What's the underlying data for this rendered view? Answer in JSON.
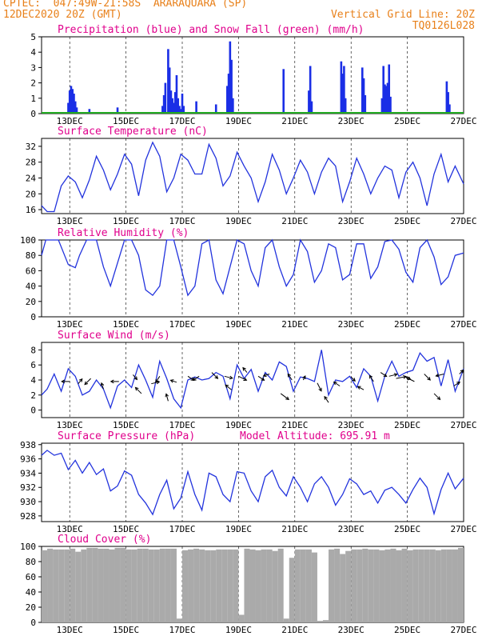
{
  "header": {
    "line1_left": "CPTEC:  047:49W-21:58S  ARARAQUARA (SP)",
    "line2_left": "12DEC2020 20Z (GMT)",
    "line2_right": "Vertical Grid Line: 20Z",
    "line3_right": "TQ0126L028"
  },
  "colors": {
    "line": "#2233dd",
    "snow": "#22aa22",
    "title": "#e0008c",
    "header": "#e8801a",
    "cloud": "#aaaaaa"
  },
  "chart_data": [
    {
      "type": "bar",
      "title": "Precipitation (blue) and Snow Fall (green) (mm/h)",
      "x_tick_labels": [
        "13DEC",
        "15DEC",
        "17DEC",
        "19DEC",
        "21DEC",
        "23DEC",
        "25DEC",
        "27DEC"
      ],
      "ylim": [
        0,
        5
      ],
      "y_ticks": [
        0,
        1,
        2,
        3,
        4,
        5
      ],
      "grid": "vertical dashed",
      "series": [
        {
          "name": "Precipitation",
          "color": "blue",
          "x": [
            0.95,
            1.0,
            1.05,
            1.1,
            1.15,
            1.2,
            1.25,
            1.7,
            2.7,
            4.3,
            4.35,
            4.4,
            4.5,
            4.55,
            4.6,
            4.65,
            4.7,
            4.75,
            4.8,
            4.85,
            4.9,
            4.95,
            5.0,
            5.05,
            5.5,
            6.2,
            6.6,
            6.65,
            6.7,
            6.75,
            6.8,
            8.6,
            9.5,
            9.55,
            9.6,
            10.65,
            10.7,
            10.75,
            10.8,
            11.4,
            11.45,
            11.5,
            12.1,
            12.15,
            12.2,
            12.25,
            12.3,
            12.35,
            12.4,
            14.4,
            14.45,
            14.5
          ],
          "values": [
            0.7,
            1.5,
            1.8,
            1.6,
            1.3,
            0.8,
            0.4,
            0.3,
            0.4,
            0.5,
            1.2,
            2.0,
            4.2,
            3.0,
            1.5,
            1.0,
            0.7,
            1.4,
            2.5,
            1.0,
            0.5,
            0.3,
            1.3,
            0.5,
            0.8,
            0.6,
            1.8,
            2.6,
            4.7,
            3.5,
            1.0,
            2.9,
            1.5,
            3.1,
            0.8,
            3.4,
            2.6,
            3.1,
            1.0,
            3.0,
            2.3,
            1.2,
            1.0,
            3.1,
            1.9,
            1.8,
            2.0,
            3.2,
            1.1,
            2.1,
            1.4,
            0.6
          ]
        },
        {
          "name": "Snow Fall",
          "color": "green",
          "x": [
            0,
            15
          ],
          "values": [
            0,
            0
          ]
        }
      ]
    },
    {
      "type": "line",
      "title": "Surface Temperature (nC)",
      "x_tick_labels": [
        "13DEC",
        "15DEC",
        "17DEC",
        "19DEC",
        "21DEC",
        "23DEC",
        "25DEC",
        "27DEC"
      ],
      "ylim": [
        15,
        34
      ],
      "y_ticks": [
        16,
        20,
        24,
        28,
        32
      ],
      "grid": "vertical dashed",
      "series": [
        {
          "color": "blue",
          "x": [
            0,
            0.2,
            0.45,
            0.7,
            0.95,
            1.2,
            1.45,
            1.7,
            1.95,
            2.2,
            2.45,
            2.7,
            2.95,
            3.2,
            3.45,
            3.7,
            3.95,
            4.2,
            4.45,
            4.7,
            4.95,
            5.2,
            5.45,
            5.7,
            5.95,
            6.2,
            6.45,
            6.7,
            6.95,
            7.2,
            7.45,
            7.7,
            7.95,
            8.2,
            8.45,
            8.7,
            8.95,
            9.2,
            9.45,
            9.7,
            9.95,
            10.2,
            10.45,
            10.7,
            10.95,
            11.2,
            11.45,
            11.7,
            11.95,
            12.2,
            12.45,
            12.7,
            12.95,
            13.2,
            13.45,
            13.7,
            13.95,
            14.2,
            14.45,
            14.7,
            15.0
          ],
          "values": [
            17,
            15.5,
            15.5,
            22,
            24.5,
            23,
            19,
            23.5,
            29.5,
            26,
            21,
            25,
            30,
            27.5,
            19.5,
            28.5,
            33,
            29.5,
            20.5,
            24,
            30,
            28.5,
            25,
            25,
            32.5,
            29,
            22,
            24.5,
            30.5,
            27,
            24,
            18,
            23,
            30,
            26,
            20,
            24,
            28.5,
            25.5,
            20,
            25.5,
            29,
            27,
            18,
            23,
            29,
            25,
            20,
            24,
            27,
            26,
            19,
            25.5,
            28,
            24,
            17,
            25,
            30,
            23,
            27,
            22.5
          ]
        }
      ]
    },
    {
      "type": "line",
      "title": "Relative Humidity (%)",
      "x_tick_labels": [
        "13DEC",
        "15DEC",
        "17DEC",
        "19DEC",
        "21DEC",
        "23DEC",
        "25DEC",
        "27DEC"
      ],
      "ylim": [
        0,
        100
      ],
      "y_ticks": [
        0,
        20,
        40,
        60,
        80,
        100
      ],
      "grid": "vertical dashed",
      "series": [
        {
          "color": "blue",
          "x": [
            0,
            0.15,
            0.3,
            0.6,
            0.95,
            1.2,
            1.35,
            1.6,
            1.95,
            2.2,
            2.45,
            2.7,
            2.95,
            3.2,
            3.45,
            3.7,
            3.95,
            4.2,
            4.45,
            4.7,
            4.95,
            5.2,
            5.45,
            5.7,
            5.95,
            6.2,
            6.45,
            6.7,
            6.95,
            7.2,
            7.45,
            7.7,
            7.95,
            8.2,
            8.45,
            8.7,
            8.95,
            9.2,
            9.45,
            9.7,
            9.95,
            10.2,
            10.45,
            10.7,
            10.95,
            11.2,
            11.45,
            11.7,
            11.95,
            12.2,
            12.45,
            12.7,
            12.95,
            13.2,
            13.45,
            13.7,
            13.95,
            14.2,
            14.45,
            14.7,
            15.0
          ],
          "values": [
            80,
            100,
            100,
            100,
            68,
            64,
            80,
            100,
            100,
            65,
            40,
            70,
            100,
            100,
            80,
            35,
            28,
            40,
            100,
            100,
            65,
            28,
            40,
            95,
            100,
            48,
            30,
            65,
            100,
            95,
            60,
            40,
            90,
            100,
            65,
            40,
            55,
            100,
            85,
            45,
            60,
            95,
            90,
            48,
            55,
            95,
            95,
            50,
            65,
            98,
            100,
            88,
            58,
            45,
            90,
            100,
            78,
            42,
            52,
            80,
            83
          ]
        }
      ]
    },
    {
      "type": "line",
      "title": "Surface Wind (m/s)",
      "x_tick_labels": [
        "13DEC",
        "15DEC",
        "17DEC",
        "19DEC",
        "21DEC",
        "23DEC",
        "25DEC",
        "27DEC"
      ],
      "ylim": [
        -1,
        9
      ],
      "y_ticks": [
        0,
        2,
        4,
        6,
        8
      ],
      "grid": "vertical dashed",
      "series": [
        {
          "color": "blue",
          "x": [
            0,
            0.2,
            0.45,
            0.7,
            0.95,
            1.2,
            1.45,
            1.7,
            1.95,
            2.2,
            2.45,
            2.7,
            2.95,
            3.2,
            3.45,
            3.7,
            3.95,
            4.2,
            4.45,
            4.7,
            4.95,
            5.2,
            5.45,
            5.7,
            5.95,
            6.2,
            6.45,
            6.7,
            6.95,
            7.2,
            7.45,
            7.7,
            7.95,
            8.2,
            8.45,
            8.7,
            8.95,
            9.2,
            9.45,
            9.7,
            9.95,
            10.2,
            10.45,
            10.7,
            10.95,
            11.2,
            11.45,
            11.7,
            11.95,
            12.2,
            12.45,
            12.7,
            12.95,
            13.2,
            13.45,
            13.7,
            13.95,
            14.2,
            14.45,
            14.7,
            15.0
          ],
          "values": [
            2,
            2.8,
            4.8,
            2.5,
            5.5,
            4.5,
            2,
            2.5,
            4,
            2.8,
            0.3,
            3.2,
            4,
            3,
            6,
            4,
            1.7,
            6.5,
            4.2,
            1.5,
            0.3,
            4,
            4.4,
            4,
            4.2,
            5,
            4.5,
            1.5,
            6,
            4.2,
            5.4,
            2.5,
            5,
            4,
            6.4,
            5.8,
            2.5,
            4.4,
            4.2,
            3.8,
            8,
            2,
            4,
            3.8,
            4.5,
            3,
            5.5,
            4.5,
            1.2,
            4.5,
            6.5,
            4.5,
            5,
            5.3,
            7.6,
            6.5,
            7,
            3.2,
            6.7,
            2.5,
            5.5
          ]
        },
        {
          "name": "wind arrows",
          "type": "vector",
          "x": [
            1.0,
            1.3,
            1.75,
            2.2,
            2.75,
            3.25,
            3.55,
            3.9,
            4.2,
            4.5,
            4.8,
            5.2,
            5.6,
            6.05,
            6.5,
            6.75,
            7.0,
            7.3,
            7.7,
            8.1,
            8.5,
            8.9,
            9.3,
            9.8,
            10.2,
            10.6,
            11.0,
            11.45,
            11.8,
            12.05,
            12.35,
            12.6,
            12.9,
            13.25,
            13.6,
            13.95,
            14.3,
            14.65,
            14.85
          ],
          "y": [
            3.8,
            3.5,
            4.2,
            2.8,
            3.8,
            4.7,
            2.2,
            3.5,
            4.5,
            1.2,
            3.7,
            4.5,
            4.5,
            5,
            4.5,
            2.7,
            4.5,
            5,
            4.5,
            4.8,
            2.2,
            4,
            4,
            3.6,
            1,
            3.2,
            4.4,
            2.7,
            3.8,
            5,
            4.5,
            4.2,
            4.5,
            3.8,
            4.8,
            2.2,
            4.8,
            3.2,
            4.8
          ],
          "u": [
            -2,
            1,
            -1.5,
            -0.5,
            -2,
            1,
            -1.5,
            2,
            -1,
            -0.5,
            -1.5,
            1.5,
            -1.5,
            1.5,
            2,
            -1.5,
            2,
            -1,
            1.5,
            -1.5,
            2,
            -1,
            0.5,
            1,
            -1,
            -1.5,
            1,
            -1.5,
            -1,
            1.5,
            2,
            2.5,
            1.5,
            -2,
            1.5,
            1.5,
            -2,
            1.5,
            1
          ],
          "v": [
            0,
            1.2,
            -1.5,
            1.5,
            0,
            -1.2,
            1.5,
            0.5,
            -1.5,
            1.8,
            0.5,
            -1,
            -1,
            -1.5,
            -0.5,
            1.2,
            -1,
            1.2,
            -1,
            -0.5,
            -1.5,
            1.5,
            1,
            -2,
            1.5,
            1,
            -1,
            0.8,
            1.5,
            -1,
            0.5,
            0.5,
            -0.8,
            1,
            -1.5,
            -1.5,
            -0.5,
            1,
            1
          ]
        }
      ]
    },
    {
      "type": "line",
      "title": "Surface Pressure (hPa)",
      "annotation": "Model Altitude: 695.91 m",
      "x_tick_labels": [
        "13DEC",
        "15DEC",
        "17DEC",
        "19DEC",
        "21DEC",
        "23DEC",
        "25DEC",
        "27DEC"
      ],
      "ylim": [
        927.2,
        938.2
      ],
      "y_ticks": [
        928,
        930,
        932,
        934,
        936,
        938
      ],
      "grid": "vertical dashed",
      "series": [
        {
          "color": "blue",
          "x": [
            0,
            0.2,
            0.45,
            0.7,
            0.95,
            1.2,
            1.45,
            1.7,
            1.95,
            2.2,
            2.45,
            2.7,
            2.95,
            3.2,
            3.45,
            3.7,
            3.95,
            4.2,
            4.45,
            4.7,
            4.95,
            5.2,
            5.45,
            5.7,
            5.95,
            6.2,
            6.45,
            6.7,
            6.95,
            7.2,
            7.45,
            7.7,
            7.95,
            8.2,
            8.45,
            8.7,
            8.95,
            9.2,
            9.45,
            9.7,
            9.95,
            10.2,
            10.45,
            10.7,
            10.95,
            11.2,
            11.45,
            11.7,
            11.95,
            12.2,
            12.45,
            12.7,
            12.95,
            13.2,
            13.45,
            13.7,
            13.95,
            14.2,
            14.45,
            14.7,
            15.0
          ],
          "values": [
            936.5,
            937.2,
            936.5,
            936.8,
            934.5,
            935.8,
            934,
            935.5,
            933.8,
            934.6,
            931.5,
            932.2,
            934.3,
            933.7,
            931,
            929.8,
            928.2,
            931,
            933,
            929,
            930.5,
            934.2,
            931,
            928.8,
            934,
            933.5,
            931,
            930,
            934.2,
            934,
            931.5,
            930,
            933.5,
            934.4,
            932,
            930.8,
            933.5,
            932,
            930,
            932.5,
            933.5,
            932,
            929.5,
            931,
            933.2,
            932.5,
            931,
            931.5,
            929.8,
            931.6,
            932,
            931,
            929.8,
            931.7,
            933.3,
            932,
            928.3,
            931.7,
            934,
            931.8,
            933.3
          ]
        }
      ]
    },
    {
      "type": "bar",
      "title": "Cloud Cover (%)",
      "x_tick_labels": [
        "13DEC",
        "15DEC",
        "17DEC",
        "19DEC",
        "21DEC",
        "23DEC",
        "25DEC",
        "27DEC"
      ],
      "ylim": [
        0,
        100
      ],
      "y_ticks": [
        0,
        20,
        40,
        60,
        80,
        100
      ],
      "grid": "vertical dashed",
      "series": [
        {
          "name": "Cloud cover",
          "color": "gray",
          "x": [
            0,
            0.2,
            0.4,
            0.6,
            0.8,
            1.0,
            1.2,
            1.4,
            1.6,
            1.8,
            2.0,
            2.2,
            2.4,
            2.6,
            2.8,
            3.0,
            3.2,
            3.4,
            3.6,
            3.8,
            4.0,
            4.2,
            4.4,
            4.6,
            4.8,
            5.0,
            5.2,
            5.4,
            5.6,
            5.8,
            6.0,
            6.2,
            6.4,
            6.6,
            6.8,
            7.0,
            7.2,
            7.4,
            7.6,
            7.8,
            8.0,
            8.2,
            8.4,
            8.6,
            8.8,
            9.0,
            9.2,
            9.4,
            9.6,
            9.8,
            10.0,
            10.2,
            10.4,
            10.6,
            10.8,
            11.0,
            11.2,
            11.4,
            11.6,
            11.8,
            12.0,
            12.2,
            12.4,
            12.6,
            12.8,
            13.0,
            13.2,
            13.4,
            13.6,
            13.8,
            14.0,
            14.2,
            14.4,
            14.6,
            14.8
          ],
          "values": [
            95,
            97,
            96,
            96,
            96,
            97,
            93,
            96,
            98,
            98,
            97,
            97,
            96,
            98,
            98,
            96,
            96,
            97,
            97,
            96,
            96,
            97,
            97,
            97,
            5,
            95,
            96,
            97,
            96,
            95,
            95,
            96,
            96,
            96,
            96,
            10,
            97,
            96,
            95,
            96,
            96,
            94,
            97,
            5,
            85,
            96,
            96,
            96,
            92,
            2,
            3,
            96,
            97,
            90,
            94,
            96,
            96,
            97,
            96,
            96,
            95,
            96,
            97,
            95,
            97,
            95,
            96,
            96,
            96,
            96,
            95,
            96,
            96,
            96,
            98
          ]
        }
      ]
    }
  ]
}
